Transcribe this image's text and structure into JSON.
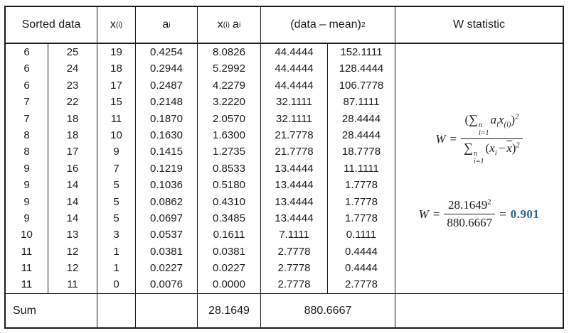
{
  "table": {
    "header": {
      "sorted_data": "Sorted data",
      "x_base": "x",
      "x_sub": "(i)",
      "a_base": "a",
      "a_sub": "i",
      "xa_x": "x",
      "xa_x_sub": "(i)",
      "xa_a": "a",
      "xa_a_sub": "i",
      "dm_base": "(data – mean)",
      "dm_sup": "2",
      "w": "W statistic"
    },
    "rows": [
      [
        "6",
        "25",
        "19",
        "0.4254",
        "8.0826",
        "44.4444",
        "152.1111"
      ],
      [
        "6",
        "24",
        "18",
        "0.2944",
        "5.2992",
        "44.4444",
        "128.4444"
      ],
      [
        "6",
        "23",
        "17",
        "0.2487",
        "4.2279",
        "44.4444",
        "106.7778"
      ],
      [
        "7",
        "22",
        "15",
        "0.2148",
        "3.2220",
        "32.1111",
        "87.1111"
      ],
      [
        "7",
        "18",
        "11",
        "0.1870",
        "2.0570",
        "32.1111",
        "28.4444"
      ],
      [
        "8",
        "18",
        "10",
        "0.1630",
        "1.6300",
        "21.7778",
        "28.4444"
      ],
      [
        "8",
        "17",
        "9",
        "0.1415",
        "1.2735",
        "21.7778",
        "18.7778"
      ],
      [
        "9",
        "16",
        "7",
        "0.1219",
        "0.8533",
        "13.4444",
        "11.1111"
      ],
      [
        "9",
        "14",
        "5",
        "0.1036",
        "0.5180",
        "13.4444",
        "1.7778"
      ],
      [
        "9",
        "14",
        "5",
        "0.0862",
        "0.4310",
        "13.4444",
        "1.7778"
      ],
      [
        "9",
        "14",
        "5",
        "0.0697",
        "0.3485",
        "13.4444",
        "1.7778"
      ],
      [
        "10",
        "13",
        "3",
        "0.0537",
        "0.1611",
        "7.1111",
        "0.1111"
      ],
      [
        "11",
        "12",
        "1",
        "0.0381",
        "0.0381",
        "2.7778",
        "0.4444"
      ],
      [
        "11",
        "12",
        "1",
        "0.0227",
        "0.0227",
        "2.7778",
        "0.4444"
      ],
      [
        "11",
        "11",
        "0",
        "0.0076",
        "0.0000",
        "2.7778",
        "2.7778"
      ]
    ],
    "sum_row": {
      "label": "Sum",
      "xa_sum": "28.1649",
      "dm_sum": "880.6667"
    }
  },
  "w_panel": {
    "formula_def": {
      "lhs": "W",
      "equals": "=",
      "num_open": "(",
      "sum": "∑",
      "lim_top": "n",
      "lim_bot": "i=1",
      "num_a": "a",
      "num_a_sub": "i",
      "num_x": "x",
      "num_x_sub": "(i)",
      "num_close": ")",
      "num_exp": "2",
      "den_sum": "∑",
      "den_lim_top": "n",
      "den_lim_bot": "i=1",
      "den_open": "(",
      "den_x": "x",
      "den_x_sub": "i",
      "den_minus": "−",
      "den_xbar": "x",
      "den_close": ")",
      "den_exp": "2"
    },
    "formula_calc": {
      "lhs": "W",
      "equals1": "=",
      "num": "28.1649",
      "num_exp": "2",
      "den": "880.6667",
      "equals2": "=",
      "result": "0.901"
    },
    "result_color": "#2e6389"
  }
}
